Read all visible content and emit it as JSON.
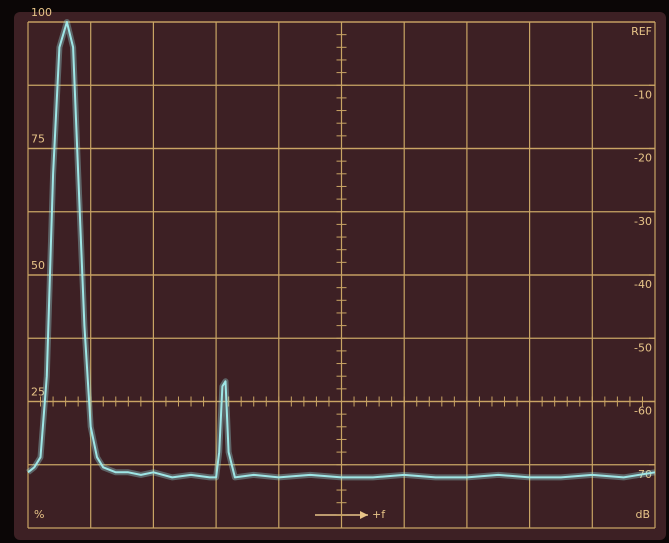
{
  "chart_data": {
    "type": "line",
    "y_label": "%",
    "y2_label": "dB",
    "x_label": "+f",
    "xlim": [
      0,
      10
    ],
    "ylim": [
      0,
      100
    ],
    "yticks": [
      25,
      50,
      75,
      100
    ],
    "y2lim": [
      -80,
      0
    ],
    "y2ticks": [
      {
        "value": 0,
        "label": "REF"
      },
      -10,
      -20,
      -30,
      -40,
      -50,
      -60,
      -70
    ],
    "grid": true,
    "series": [
      {
        "color": "#9fe6e6",
        "x": [
          0,
          0.1,
          0.2,
          0.3,
          0.4,
          0.5,
          0.62,
          0.72,
          0.8,
          0.9,
          1.0,
          1.1,
          1.2,
          1.4,
          1.6,
          1.8,
          2.0,
          2.3,
          2.6,
          2.9,
          3.0,
          3.05,
          3.1,
          3.15,
          3.2,
          3.3,
          3.6,
          4.0,
          4.5,
          5.0,
          5.5,
          6.0,
          6.5,
          7.0,
          7.5,
          8.0,
          8.5,
          9.0,
          9.5,
          10.0
        ],
        "values": [
          11,
          12,
          14,
          30,
          70,
          95,
          100,
          95,
          70,
          40,
          20,
          14,
          12,
          11,
          11,
          10.5,
          11,
          10,
          10.5,
          10,
          10,
          15,
          28,
          29,
          15,
          10,
          10.5,
          10,
          10.5,
          10,
          10,
          10.5,
          10,
          10,
          10.5,
          10,
          10,
          10.5,
          10,
          11
        ]
      }
    ]
  }
}
